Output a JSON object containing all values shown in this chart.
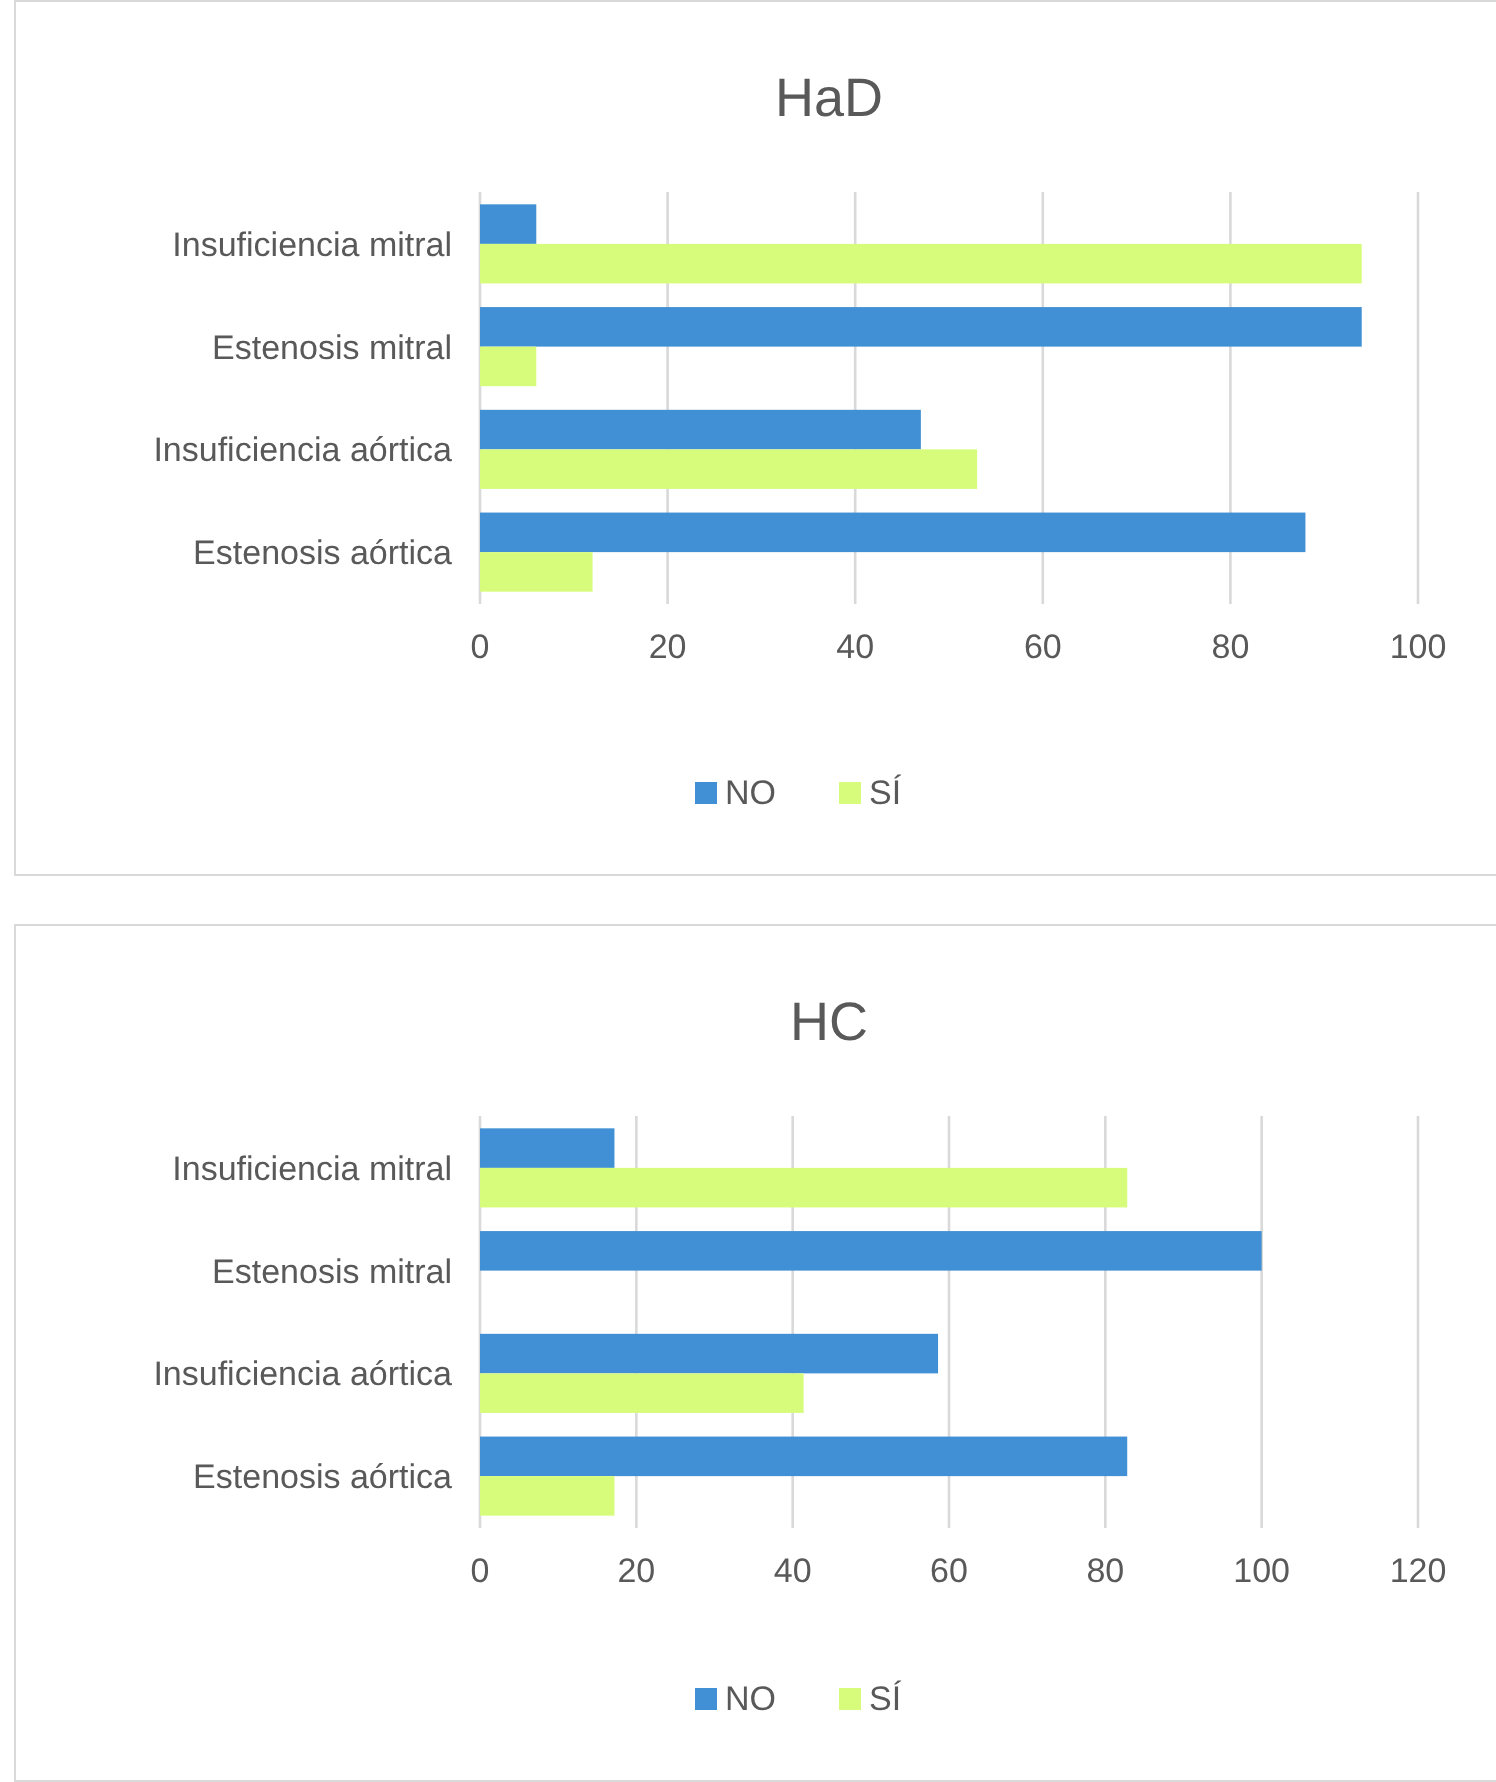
{
  "chart_data": [
    {
      "type": "bar",
      "orientation": "horizontal",
      "title": "HaD",
      "categories": [
        "Insuficiencia mitral",
        "Estenosis mitral",
        "Insuficiencia aórtica",
        "Estenosis aórtica"
      ],
      "series": [
        {
          "name": "NO",
          "color": "#4190d5",
          "values": [
            6,
            94,
            47,
            88
          ]
        },
        {
          "name": "SÍ",
          "color": "#d7fc7b",
          "values": [
            94,
            6,
            53,
            12
          ]
        }
      ],
      "xlim": [
        0,
        100
      ],
      "xticks": [
        0,
        20,
        40,
        60,
        80,
        100
      ],
      "grid": "x",
      "legend": "bottom"
    },
    {
      "type": "bar",
      "orientation": "horizontal",
      "title": "HC",
      "categories": [
        "Insuficiencia mitral",
        "Estenosis mitral",
        "Insuficiencia aórtica",
        "Estenosis aórtica"
      ],
      "series": [
        {
          "name": "NO",
          "color": "#4190d5",
          "values": [
            17.2,
            100,
            58.6,
            82.8
          ]
        },
        {
          "name": "SÍ",
          "color": "#d7fc7b",
          "values": [
            82.8,
            0,
            41.4,
            17.2
          ]
        }
      ],
      "xlim": [
        0,
        120
      ],
      "xticks": [
        0,
        20,
        40,
        60,
        80,
        100,
        120
      ],
      "grid": "x",
      "legend": "bottom"
    }
  ]
}
